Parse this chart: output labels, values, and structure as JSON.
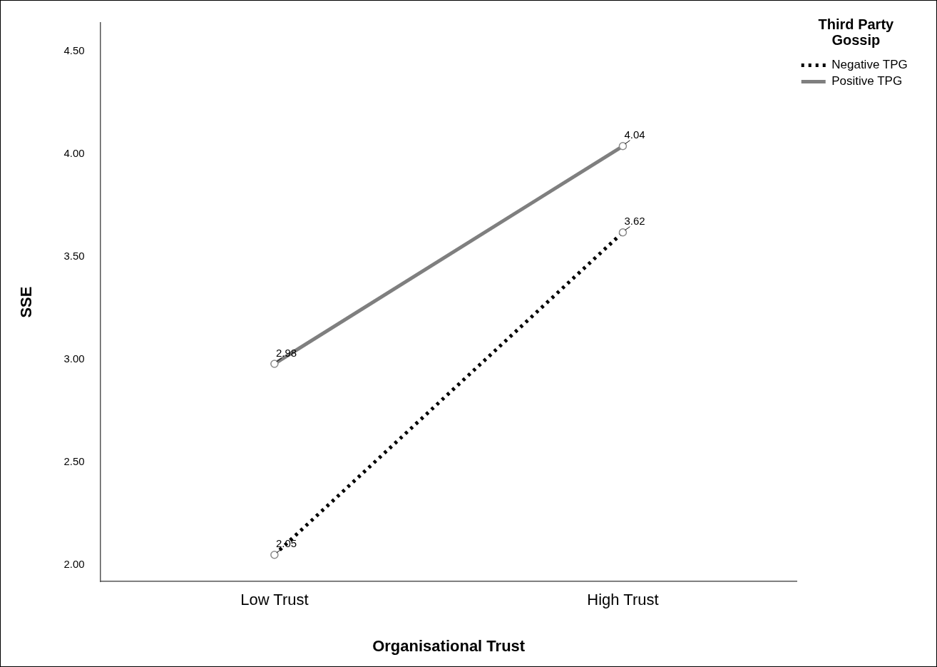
{
  "chart_data": {
    "type": "line",
    "xlabel": "Organisational Trust",
    "ylabel": "SSE",
    "legend_title": "Third Party Gossip",
    "categories": [
      "Low Trust",
      "High Trust"
    ],
    "series": [
      {
        "name": "Negative TPG",
        "color": "#000000",
        "line_style": "dotted",
        "values": [
          2.05,
          3.62
        ]
      },
      {
        "name": "Positive TPG",
        "color": "#7f7f7f",
        "line_style": "solid",
        "values": [
          2.98,
          4.04
        ]
      }
    ],
    "ylim": [
      1.92,
      4.64
    ],
    "yticks": [
      {
        "value": 2,
        "label": "2.00"
      },
      {
        "value": 2.5,
        "label": "2.50"
      },
      {
        "value": 3,
        "label": "3.00"
      },
      {
        "value": 3.5,
        "label": "3.50"
      },
      {
        "value": 4,
        "label": "4.00"
      },
      {
        "value": 4.5,
        "label": "4.50"
      }
    ],
    "grid": false,
    "legend": "top right",
    "marker": "circle",
    "data_labels": true
  }
}
